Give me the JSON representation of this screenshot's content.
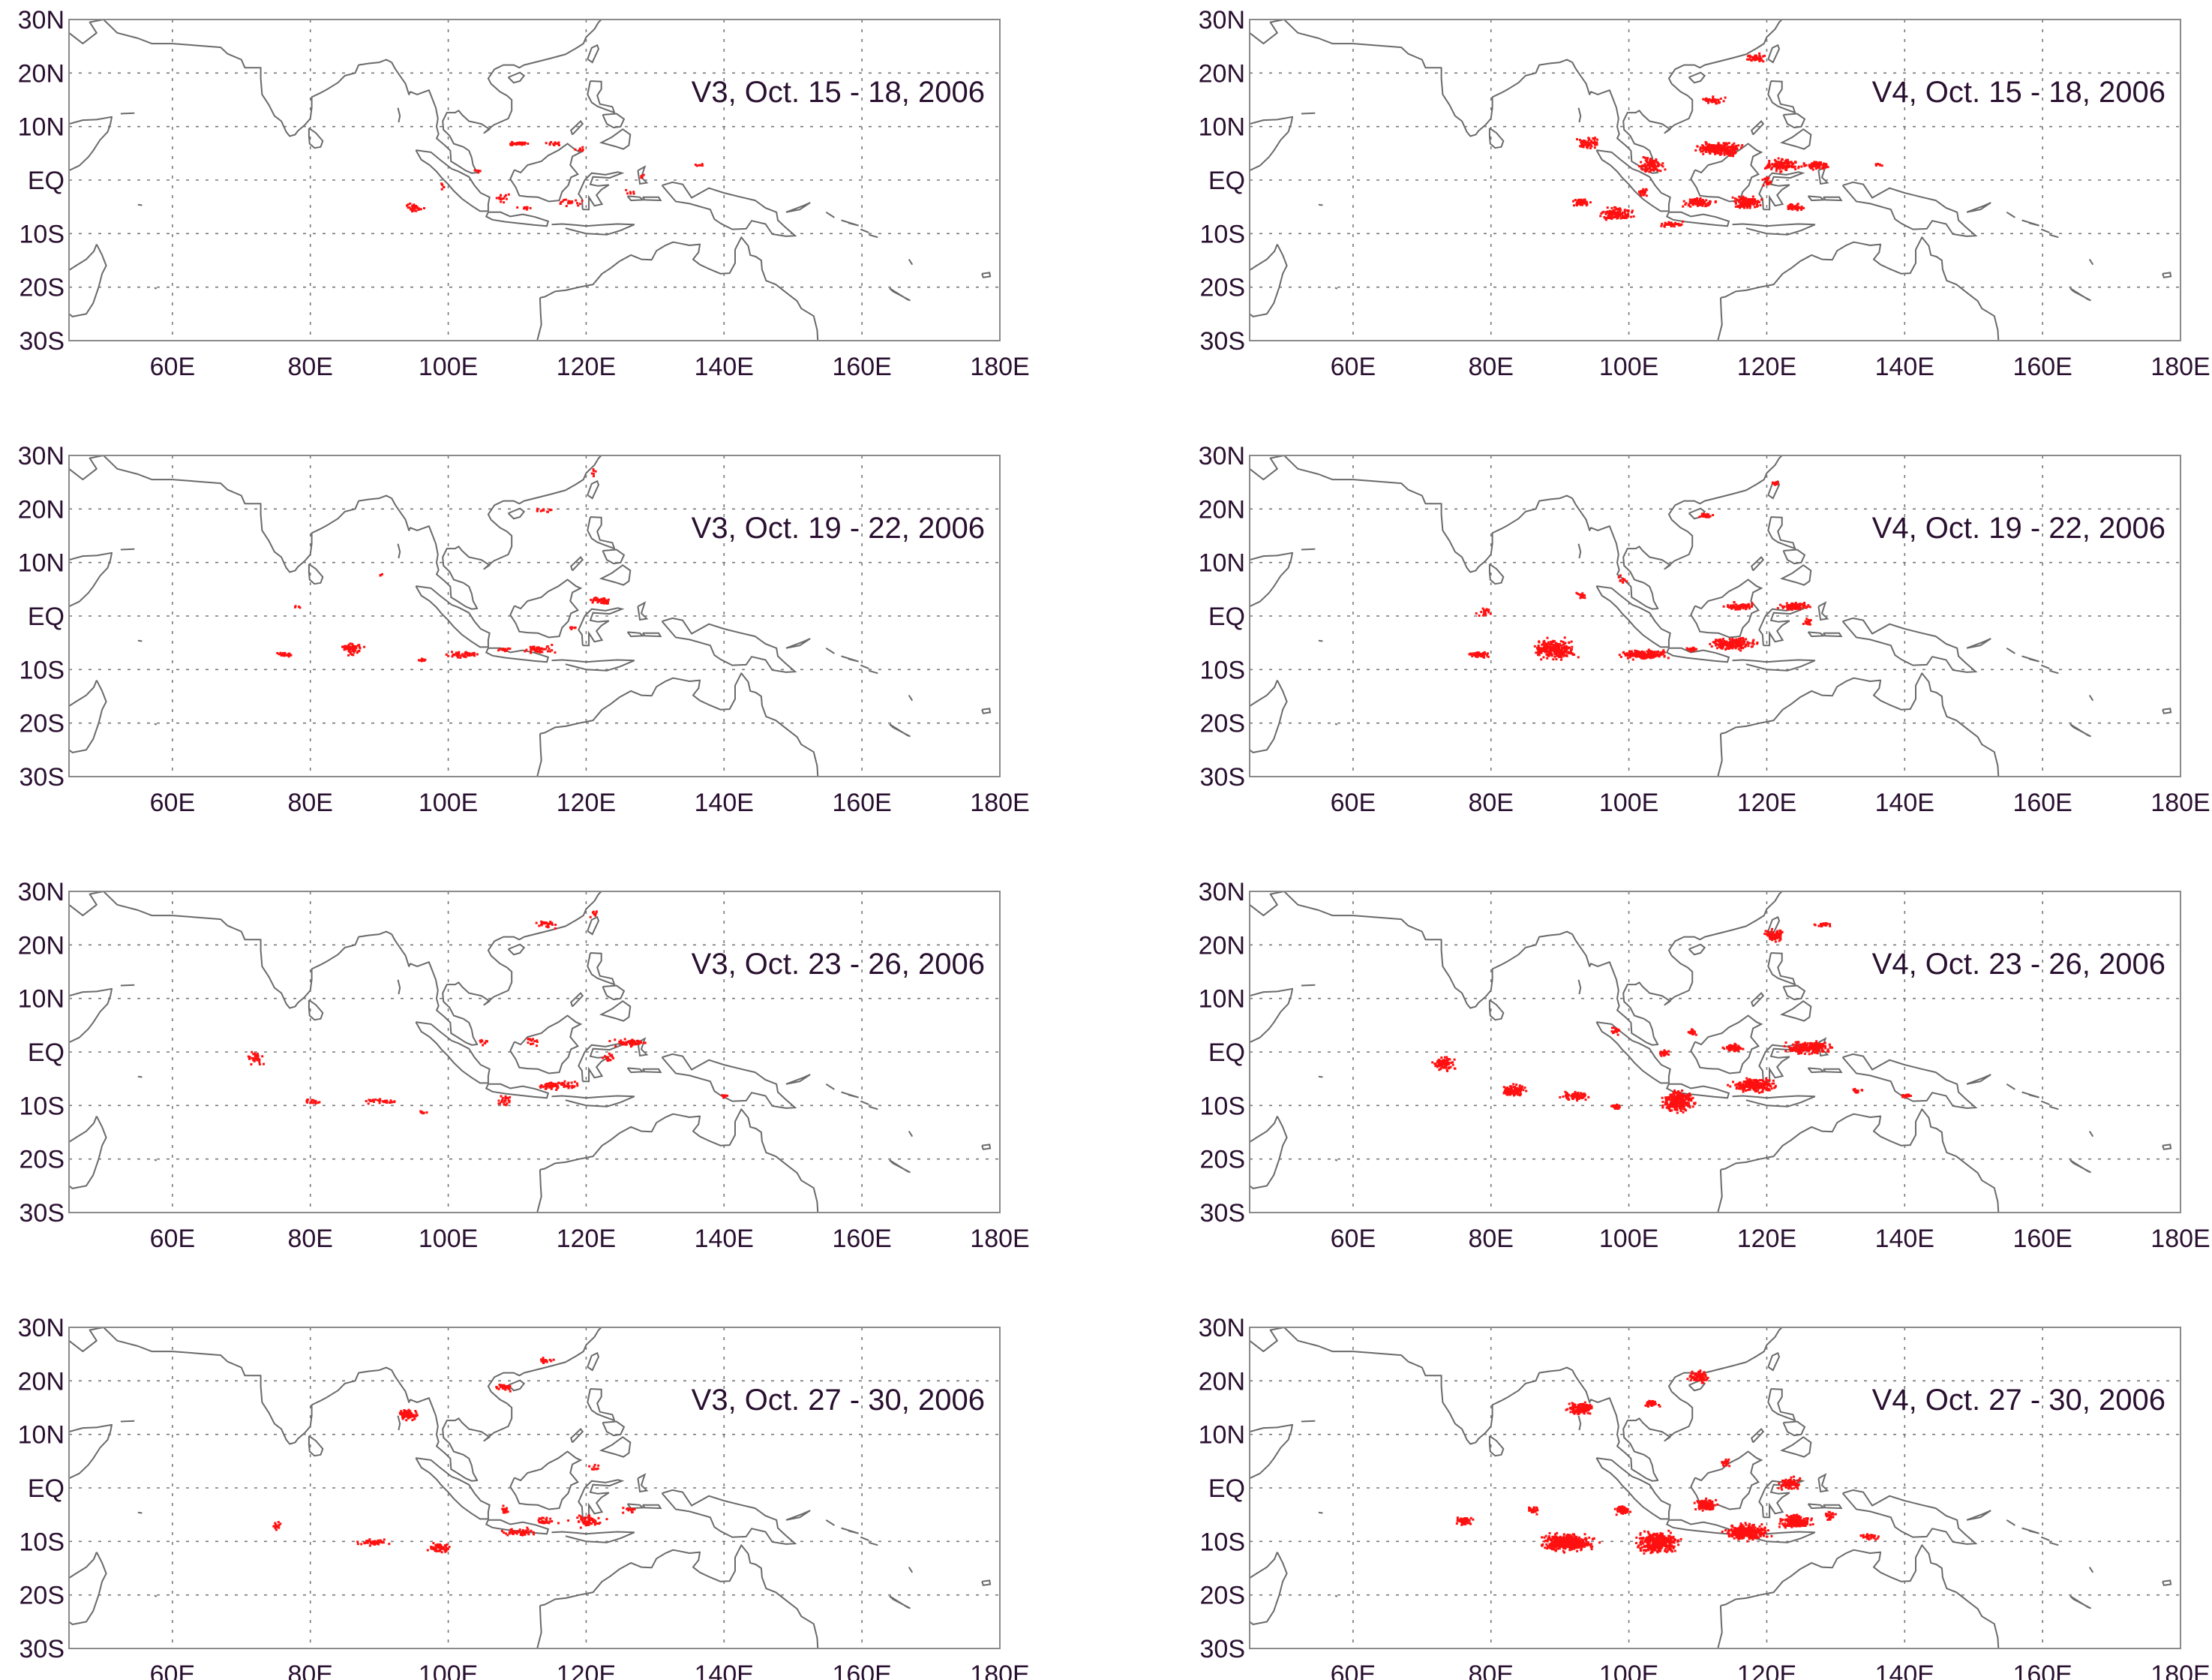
{
  "figure": {
    "lon_range": [
      45,
      180
    ],
    "lat_range": [
      -30,
      30
    ],
    "y_ticks": [
      {
        "lat": 30,
        "label": "30N"
      },
      {
        "lat": 20,
        "label": "20N"
      },
      {
        "lat": 10,
        "label": "10N"
      },
      {
        "lat": 0,
        "label": "EQ"
      },
      {
        "lat": -10,
        "label": "10S"
      },
      {
        "lat": -20,
        "label": "20S"
      },
      {
        "lat": -30,
        "label": "30S"
      }
    ],
    "x_ticks": [
      {
        "lon": 60,
        "label": "60E"
      },
      {
        "lon": 80,
        "label": "80E"
      },
      {
        "lon": 100,
        "label": "100E"
      },
      {
        "lon": 120,
        "label": "120E"
      },
      {
        "lon": 140,
        "label": "140E"
      },
      {
        "lon": 160,
        "label": "160E"
      },
      {
        "lon": 180,
        "label": "180E"
      }
    ],
    "grid_lons": [
      60,
      80,
      100,
      120,
      140,
      160
    ],
    "grid_lats": [
      20,
      10,
      0,
      -10,
      -20
    ],
    "hotspot_color": "#ff1010",
    "coast_color": "#6a6a6a"
  },
  "panels": [
    {
      "title": "V3, Oct. 15 - 18, 2006",
      "version": "V3",
      "period": "Oct. 15 - 18, 2006",
      "hotspots": [
        [
          110,
          7,
          3,
          0.4,
          40
        ],
        [
          115,
          7,
          1.5,
          0.4,
          15
        ],
        [
          119,
          6,
          1,
          0.5,
          8
        ],
        [
          95,
          -5,
          1.5,
          1,
          35
        ],
        [
          117,
          -4,
          3,
          0.8,
          20
        ],
        [
          108,
          -3,
          2,
          1,
          15
        ],
        [
          104,
          2,
          1,
          0.5,
          6
        ],
        [
          126,
          -2,
          1,
          0.6,
          6
        ],
        [
          128,
          1,
          0.6,
          0.5,
          5
        ],
        [
          136,
          3,
          1,
          0.3,
          6
        ],
        [
          111,
          -5,
          1.5,
          0.5,
          10
        ],
        [
          99,
          -1,
          1,
          1,
          6
        ]
      ]
    },
    {
      "title": "V4, Oct. 15 - 18, 2006",
      "version": "V4",
      "period": "Oct. 15 - 18, 2006",
      "hotspots": [
        [
          113,
          6,
          4,
          1.5,
          260
        ],
        [
          103,
          3,
          2.5,
          2,
          90
        ],
        [
          94,
          7,
          2,
          1.5,
          60
        ],
        [
          122,
          3,
          3,
          1.5,
          120
        ],
        [
          127,
          3,
          2.5,
          1,
          80
        ],
        [
          117,
          -4,
          2.5,
          1.5,
          150
        ],
        [
          110,
          -4,
          3,
          1,
          90
        ],
        [
          98,
          -6,
          3,
          1.5,
          130
        ],
        [
          93,
          -4,
          1.5,
          1,
          60
        ],
        [
          112,
          15,
          2.5,
          1,
          40
        ],
        [
          118,
          23,
          2,
          1,
          40
        ],
        [
          106,
          -8,
          2,
          0.7,
          40
        ],
        [
          124,
          -5,
          2,
          1,
          40
        ],
        [
          136,
          3,
          0.8,
          0.3,
          6
        ],
        [
          120,
          0,
          1,
          1,
          20
        ],
        [
          102,
          -2,
          1,
          1,
          25
        ]
      ]
    },
    {
      "title": "V3, Oct. 19 - 22, 2006",
      "version": "V3",
      "period": "Oct. 19 - 22, 2006",
      "hotspots": [
        [
          86,
          -6,
          2,
          1.5,
          60
        ],
        [
          76,
          -7,
          1.5,
          0.5,
          30
        ],
        [
          102,
          -7,
          3,
          0.8,
          45
        ],
        [
          113,
          -6,
          3,
          1,
          50
        ],
        [
          122,
          3,
          2,
          1,
          40
        ],
        [
          118,
          -2,
          1,
          0.5,
          8
        ],
        [
          108,
          -6,
          1.5,
          0.5,
          15
        ],
        [
          78,
          2,
          0.6,
          0.5,
          4
        ],
        [
          90,
          8,
          0.6,
          0.5,
          4
        ],
        [
          96,
          -8,
          1,
          0.4,
          10
        ],
        [
          114,
          20,
          2,
          0.5,
          12
        ],
        [
          121,
          27,
          0.5,
          1.5,
          6
        ]
      ]
    },
    {
      "title": "V4, Oct. 19 - 22, 2006",
      "version": "V4",
      "period": "Oct. 19 - 22, 2006",
      "hotspots": [
        [
          89,
          -6,
          4,
          2.5,
          260
        ],
        [
          78,
          -7,
          2,
          0.7,
          60
        ],
        [
          102,
          -7,
          4,
          1,
          200
        ],
        [
          115,
          -5,
          4,
          1.5,
          200
        ],
        [
          124,
          2,
          3,
          1,
          100
        ],
        [
          116,
          2,
          3,
          0.8,
          70
        ],
        [
          79,
          1,
          1.5,
          1,
          20
        ],
        [
          93,
          4,
          1,
          1,
          15
        ],
        [
          99,
          7,
          1,
          1,
          10
        ],
        [
          111,
          19,
          2,
          0.5,
          25
        ],
        [
          121,
          25,
          1,
          0.6,
          10
        ],
        [
          126,
          -1,
          1,
          1,
          20
        ],
        [
          109,
          -6,
          1,
          0.5,
          20
        ]
      ]
    },
    {
      "title": "V3, Oct. 23 - 26, 2006",
      "version": "V3",
      "period": "Oct. 23 - 26, 2006",
      "hotspots": [
        [
          72,
          -1,
          1.5,
          1.5,
          30
        ],
        [
          80,
          -9,
          1.5,
          0.7,
          15
        ],
        [
          90,
          -9,
          3,
          0.7,
          30
        ],
        [
          96,
          -11,
          1,
          0.4,
          8
        ],
        [
          108,
          -9,
          1.5,
          1.5,
          25
        ],
        [
          116,
          -6,
          4,
          1,
          80
        ],
        [
          126,
          2,
          3,
          1,
          60
        ],
        [
          123,
          -1,
          1.5,
          1,
          20
        ],
        [
          114,
          24,
          2,
          1,
          25
        ],
        [
          121,
          26,
          1,
          1,
          8
        ],
        [
          112,
          2,
          1.5,
          1,
          15
        ],
        [
          105,
          2,
          1,
          0.8,
          10
        ],
        [
          140,
          -8,
          1,
          0.4,
          8
        ]
      ]
    },
    {
      "title": "V4, Oct. 23 - 26, 2006",
      "version": "V4",
      "period": "Oct. 23 - 26, 2006",
      "hotspots": [
        [
          73,
          -2,
          2,
          1.5,
          100
        ],
        [
          83,
          -7,
          2.5,
          1.5,
          100
        ],
        [
          92,
          -8,
          2.5,
          1,
          80
        ],
        [
          98,
          -10,
          1,
          0.6,
          30
        ],
        [
          107,
          -9,
          3,
          2.5,
          300
        ],
        [
          118,
          -6,
          4,
          1.5,
          250
        ],
        [
          126,
          1,
          4,
          1.5,
          220
        ],
        [
          115,
          1,
          2,
          1,
          60
        ],
        [
          121,
          22,
          2,
          1.5,
          80
        ],
        [
          128,
          24,
          1.5,
          0.5,
          20
        ],
        [
          105,
          0,
          1,
          1,
          25
        ],
        [
          98,
          4,
          1,
          1,
          20
        ],
        [
          140,
          -8,
          1,
          0.5,
          15
        ],
        [
          133,
          -7,
          1,
          0.5,
          15
        ],
        [
          109,
          4,
          1,
          1,
          20
        ]
      ]
    },
    {
      "title": "V3, Oct. 27 - 30, 2006",
      "version": "V3",
      "period": "Oct. 27 - 30, 2006",
      "hotspots": [
        [
          94,
          14,
          2,
          1.5,
          70
        ],
        [
          108,
          19,
          1.5,
          1,
          30
        ],
        [
          114,
          24,
          1.5,
          1,
          20
        ],
        [
          75,
          -7,
          1,
          1,
          15
        ],
        [
          89,
          -10,
          3,
          0.8,
          50
        ],
        [
          99,
          -11,
          2.5,
          1,
          60
        ],
        [
          110,
          -8,
          3,
          1,
          50
        ],
        [
          120,
          -6,
          3,
          1.5,
          60
        ],
        [
          108,
          -4,
          1,
          1,
          20
        ],
        [
          126,
          -4,
          1.5,
          1,
          15
        ],
        [
          121,
          4,
          1,
          1,
          10
        ],
        [
          114,
          -6,
          2,
          0.8,
          25
        ]
      ]
    },
    {
      "title": "V4, Oct. 27 - 30, 2006",
      "version": "V4",
      "period": "Oct. 27 - 30, 2006",
      "hotspots": [
        [
          93,
          15,
          2.5,
          1.5,
          130
        ],
        [
          103,
          16,
          1.5,
          1,
          40
        ],
        [
          110,
          21,
          2,
          1.5,
          80
        ],
        [
          76,
          -6,
          1.5,
          1,
          60
        ],
        [
          91,
          -10,
          5,
          2,
          400
        ],
        [
          104,
          -10,
          4,
          2.5,
          350
        ],
        [
          117,
          -8,
          4,
          2,
          300
        ],
        [
          124,
          -6,
          3,
          1.5,
          200
        ],
        [
          111,
          -3,
          2,
          1.5,
          120
        ],
        [
          123,
          1,
          2,
          1.5,
          80
        ],
        [
          99,
          -4,
          1.5,
          1,
          60
        ],
        [
          114,
          5,
          1,
          1,
          20
        ],
        [
          129,
          -5,
          1,
          1,
          30
        ],
        [
          135,
          -9,
          2,
          1,
          25
        ],
        [
          86,
          -4,
          1,
          1,
          30
        ]
      ]
    }
  ]
}
